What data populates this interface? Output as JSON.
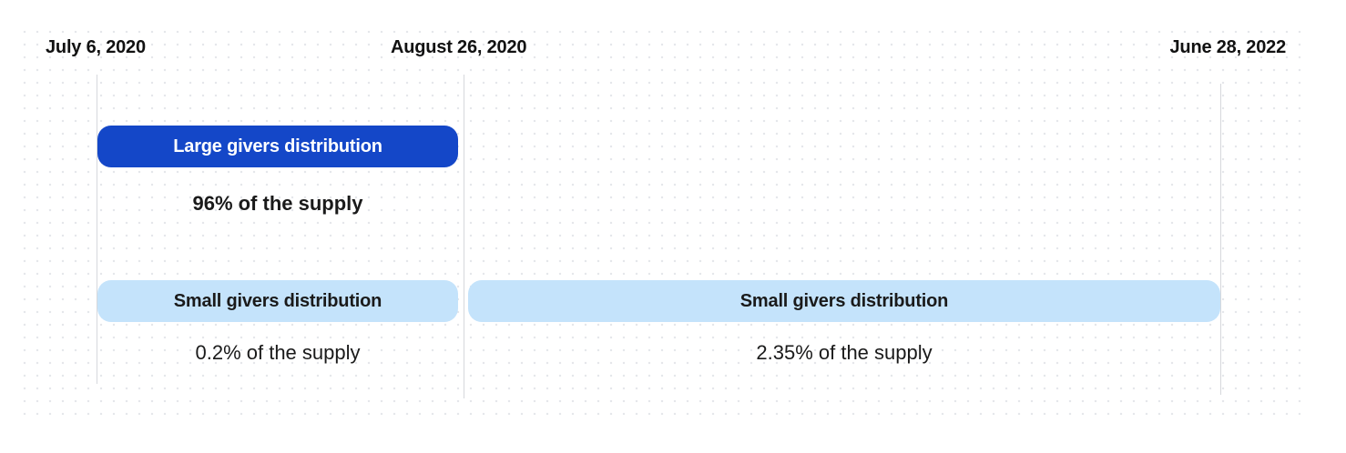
{
  "timeline": {
    "dates": [
      "July 6, 2020",
      "August 26, 2020",
      "June 28, 2022"
    ]
  },
  "phases": {
    "large_first": {
      "label": "Large givers distribution",
      "share": "96% of the supply",
      "color": "#1447c8"
    },
    "small_first": {
      "label": "Small givers distribution",
      "share": "0.2% of the supply",
      "color": "#c4e3fb"
    },
    "small_second": {
      "label": "Small givers distribution",
      "share": "2.35% of the supply",
      "color": "#c4e3fb"
    }
  }
}
